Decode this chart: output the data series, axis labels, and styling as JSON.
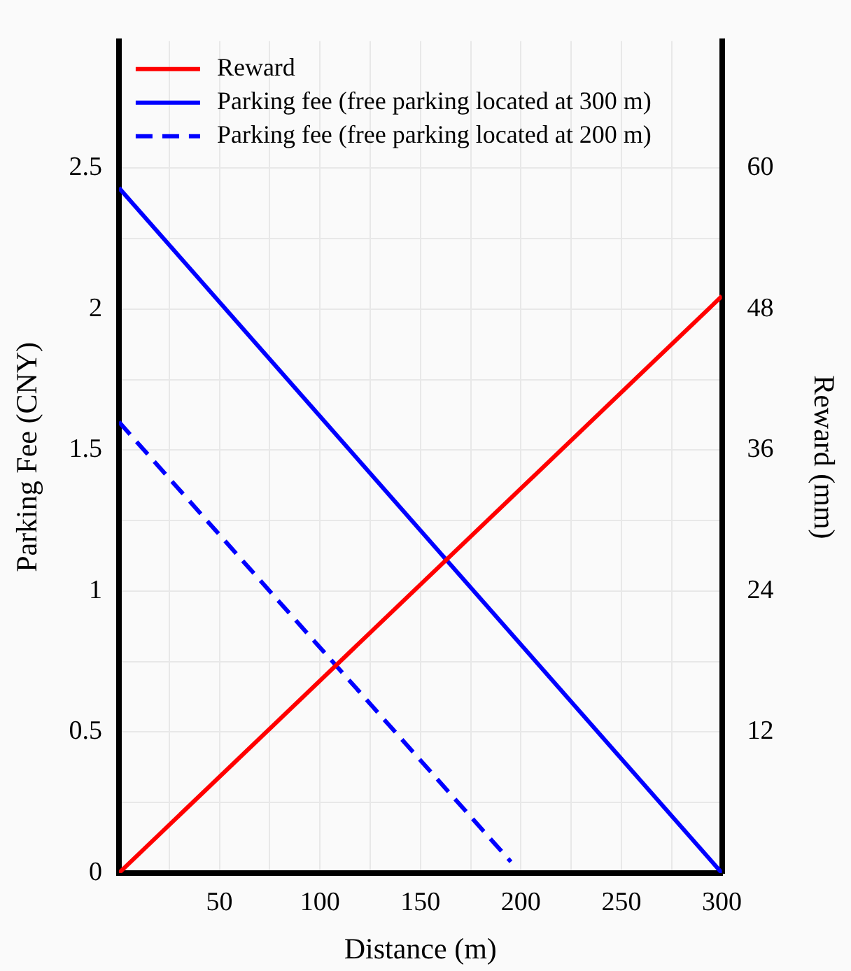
{
  "chart_data": {
    "type": "line",
    "xlabel": "Distance (m)",
    "ylabel": "Parking Fee (CNY)",
    "y2label": "Reward (mm)",
    "xlim": [
      0,
      300
    ],
    "xticks": [
      {
        "value": 0,
        "label": null
      },
      {
        "value": 25,
        "label": null
      },
      50,
      {
        "value": 75,
        "label": null
      },
      100,
      {
        "value": 125,
        "label": null
      },
      150,
      {
        "value": 175,
        "label": null
      },
      200,
      {
        "value": 225,
        "label": null
      },
      250,
      {
        "value": 275,
        "label": null
      },
      300
    ],
    "ylim": [
      0,
      2.95
    ],
    "yticks": [
      0,
      {
        "value": 0.25,
        "label": null
      },
      0.5,
      {
        "value": 0.75,
        "label": null
      },
      1,
      {
        "value": 1.25,
        "label": null
      },
      1.5,
      {
        "value": 1.75,
        "label": null
      },
      2,
      {
        "value": 2.25,
        "label": null
      },
      2.5
    ],
    "y2lim": [
      0,
      70.8
    ],
    "y2ticks": [
      12,
      24,
      36,
      48,
      60
    ],
    "grid": true,
    "legend": "top left",
    "marker": "none",
    "series": [
      {
        "name": "Reward",
        "color": "#ff0000",
        "axis": "y2",
        "x": [
          0,
          300
        ],
        "values": [
          0,
          49.1
        ],
        "line_style": "solid"
      },
      {
        "name": "Parking fee (free parking located at 300 m)",
        "color": "#0000ff",
        "x": [
          0,
          300
        ],
        "values": [
          2.43,
          0
        ],
        "line_style": "solid"
      },
      {
        "name": "Parking fee (free parking located at 200 m)",
        "color": "#0000ff",
        "x": [
          0,
          195
        ],
        "values": [
          1.6,
          0.04
        ],
        "line_style": "dashed"
      }
    ]
  }
}
